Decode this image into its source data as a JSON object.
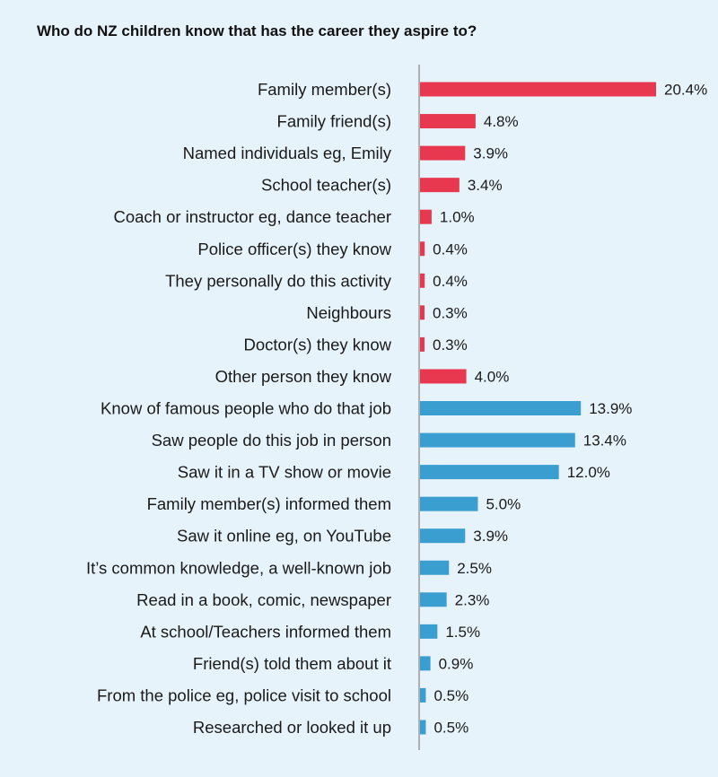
{
  "chart_data": {
    "type": "bar",
    "orientation": "horizontal",
    "title": "Who do NZ children know that has the career they aspire to?",
    "xlabel": "",
    "ylabel": "",
    "unit_suffix": "%",
    "xlim": [
      0,
      20.4
    ],
    "grid": false,
    "legend": "none",
    "colors": {
      "group_a": "#e8384f",
      "group_b": "#3a9fd0",
      "axis": "#9a9a9a"
    },
    "items": [
      {
        "label": "Family member(s)",
        "value": 20.4,
        "display": "20.4%",
        "group": "a"
      },
      {
        "label": "Family friend(s)",
        "value": 4.8,
        "display": "4.8%",
        "group": "a"
      },
      {
        "label": "Named individuals eg, Emily",
        "value": 3.9,
        "display": "3.9%",
        "group": "a"
      },
      {
        "label": "School teacher(s)",
        "value": 3.4,
        "display": "3.4%",
        "group": "a"
      },
      {
        "label": "Coach or instructor eg, dance teacher",
        "value": 1.0,
        "display": "1.0%",
        "group": "a"
      },
      {
        "label": "Police officer(s) they know",
        "value": 0.4,
        "display": "0.4%",
        "group": "a"
      },
      {
        "label": "They personally do this activity",
        "value": 0.4,
        "display": "0.4%",
        "group": "a"
      },
      {
        "label": "Neighbours",
        "value": 0.3,
        "display": "0.3%",
        "group": "a"
      },
      {
        "label": "Doctor(s) they know",
        "value": 0.3,
        "display": "0.3%",
        "group": "a"
      },
      {
        "label": "Other person they know",
        "value": 4.0,
        "display": "4.0%",
        "group": "a"
      },
      {
        "label": "Know of famous people who do that job",
        "value": 13.9,
        "display": "13.9%",
        "group": "b"
      },
      {
        "label": "Saw people do this job in person",
        "value": 13.4,
        "display": "13.4%",
        "group": "b"
      },
      {
        "label": "Saw it in a TV show or movie",
        "value": 12.0,
        "display": "12.0%",
        "group": "b"
      },
      {
        "label": "Family member(s) informed them",
        "value": 5.0,
        "display": "5.0%",
        "group": "b"
      },
      {
        "label": "Saw it online eg, on YouTube",
        "value": 3.9,
        "display": "3.9%",
        "group": "b"
      },
      {
        "label": "It’s common knowledge, a well-known job",
        "value": 2.5,
        "display": "2.5%",
        "group": "b"
      },
      {
        "label": "Read in a book, comic, newspaper",
        "value": 2.3,
        "display": "2.3%",
        "group": "b"
      },
      {
        "label": "At school/Teachers informed them",
        "value": 1.5,
        "display": "1.5%",
        "group": "b"
      },
      {
        "label": "Friend(s) told them about it",
        "value": 0.9,
        "display": "0.9%",
        "group": "b"
      },
      {
        "label": "From the police eg, police visit to school",
        "value": 0.5,
        "display": "0.5%",
        "group": "b"
      },
      {
        "label": "Researched or looked it up",
        "value": 0.5,
        "display": "0.5%",
        "group": "b"
      }
    ]
  }
}
